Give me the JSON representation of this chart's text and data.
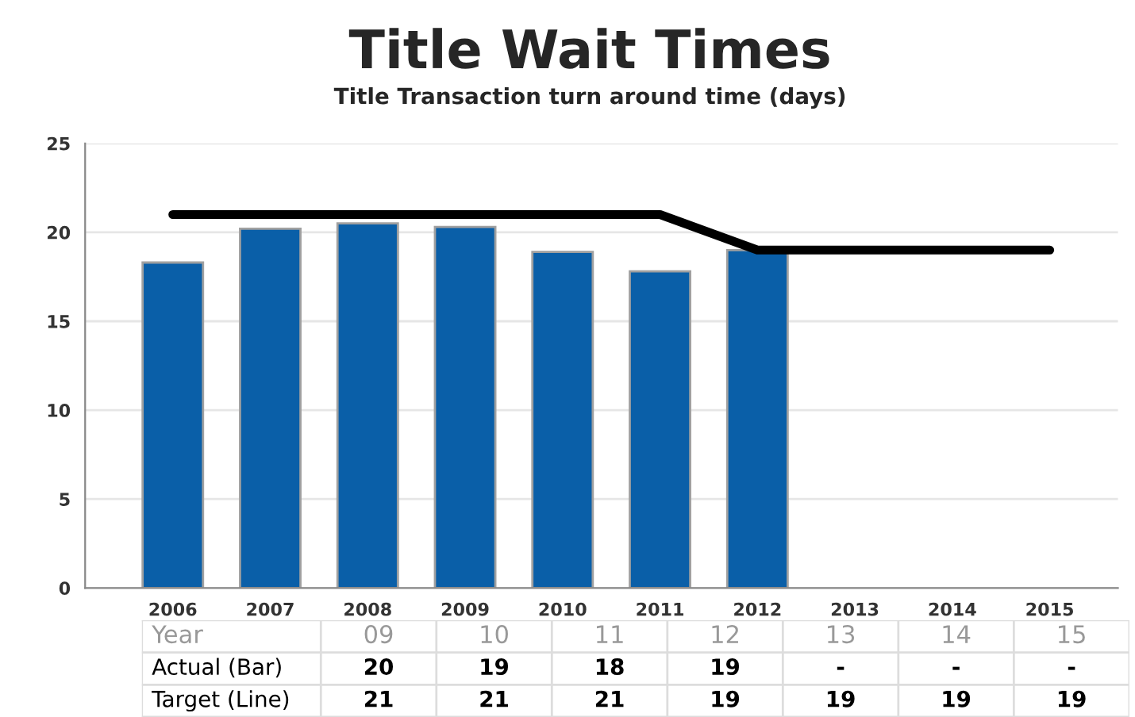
{
  "chart_data": {
    "type": "bar",
    "title": "Title Wait Times",
    "subtitle": "Title Transaction turn around time (days)",
    "categories": [
      "2006",
      "2007",
      "2008",
      "2009",
      "2010",
      "2011",
      "2012",
      "2013",
      "2014",
      "2015"
    ],
    "series": [
      {
        "color": "#0a5fa8",
        "values": [
          18.3,
          20.2,
          20.5,
          20.3,
          18.9,
          17.8,
          19.0,
          null,
          null,
          null
        ]
      },
      {
        "type": "line",
        "color": "#000000",
        "values": [
          21,
          21,
          21,
          21,
          21,
          21,
          19,
          19,
          19,
          19
        ]
      }
    ],
    "ylim": [
      0,
      25
    ],
    "yticks": [
      0,
      5,
      10,
      15,
      20,
      25
    ],
    "grid": "y",
    "legend": false,
    "marker": "none",
    "line_style": "solid",
    "annotations": [
      "Year",
      "09",
      "10",
      "11",
      "12",
      "13",
      "14",
      "15",
      "Actual (Bar)",
      "20",
      "19",
      "18",
      "19",
      "-",
      "-",
      "-",
      "Target (Line)",
      "21",
      "21",
      "21",
      "19",
      "19",
      "19",
      "19"
    ]
  }
}
